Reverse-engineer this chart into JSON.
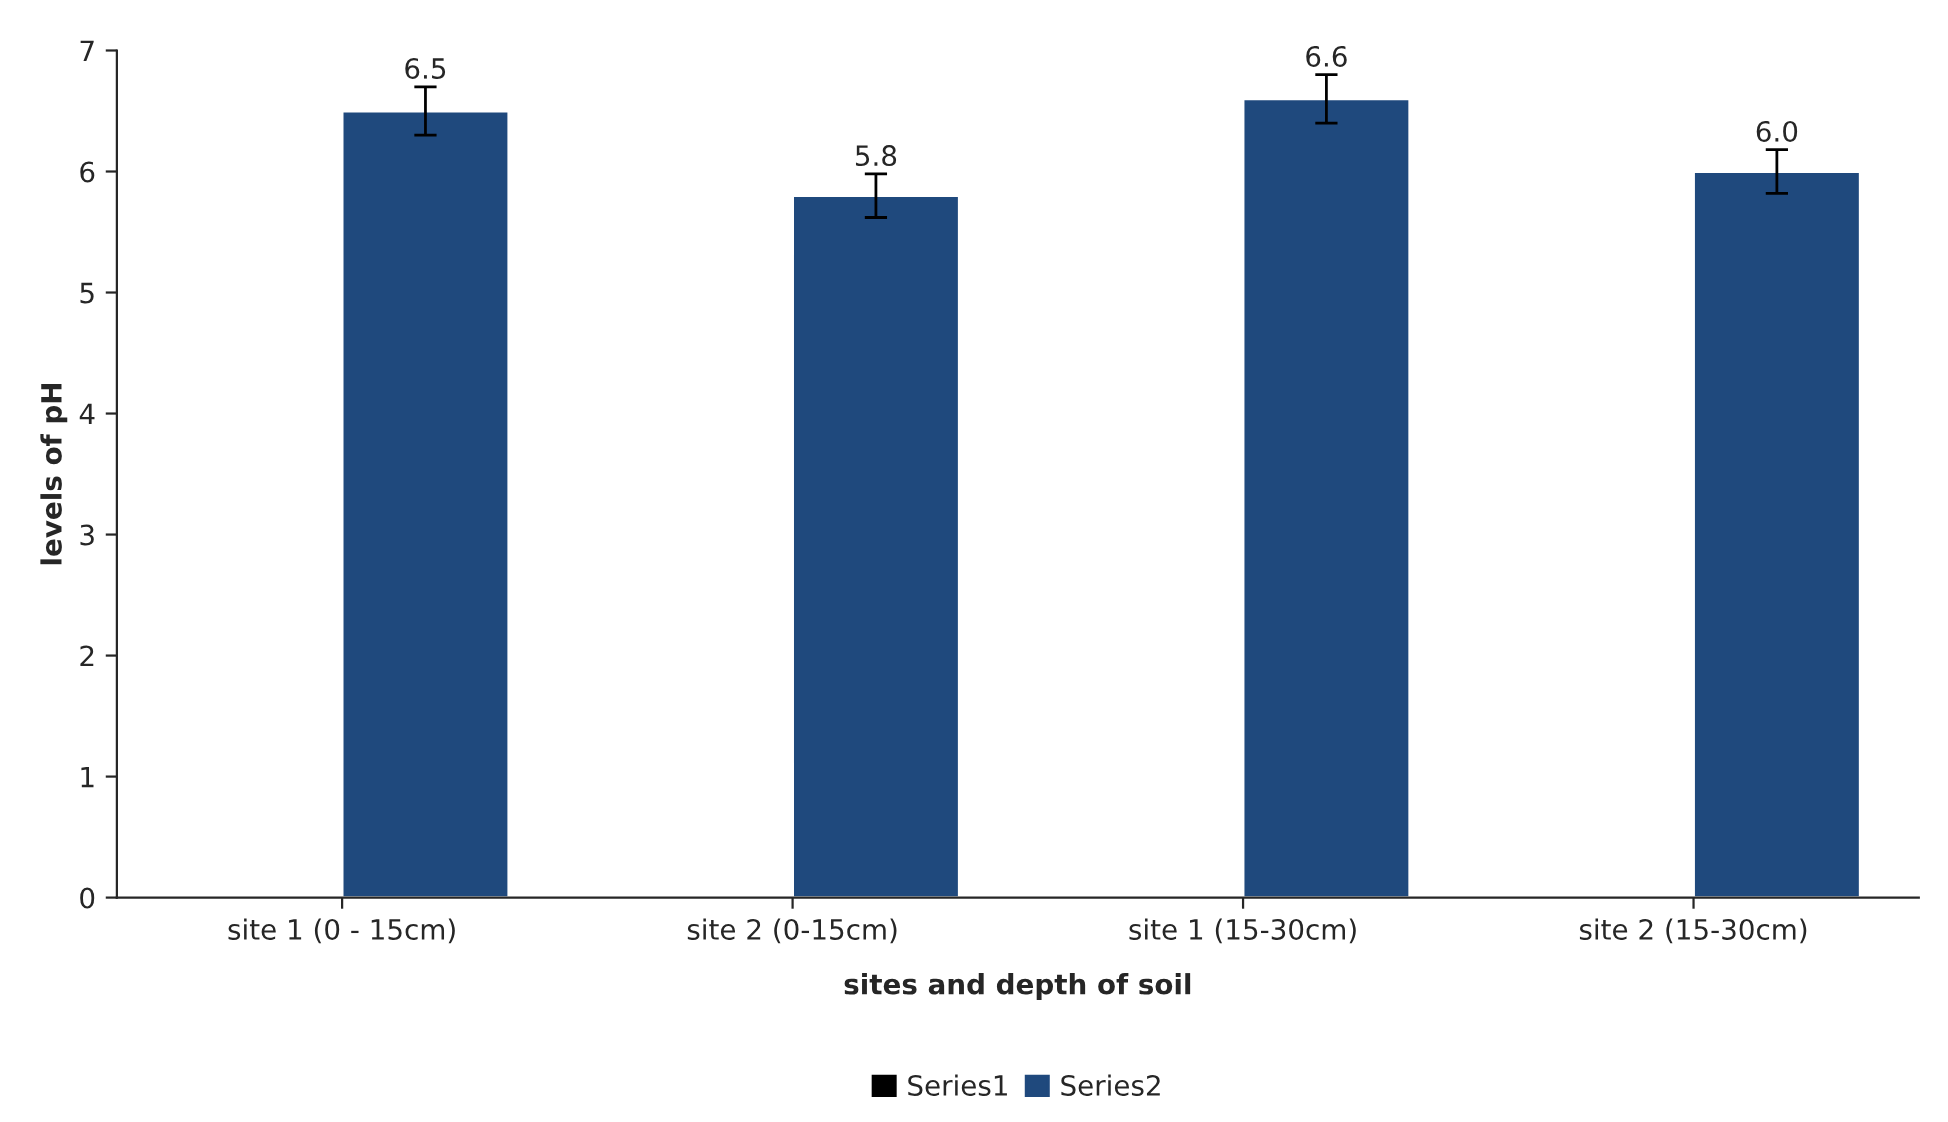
{
  "chart_data": {
    "type": "bar",
    "xlabel": "sites and depth of soil",
    "ylabel": "levels of pH",
    "categories": [
      "site 1 (0 - 15cm)",
      "site 2 (0-15cm)",
      "site 1 (15-30cm)",
      "site 2 (15-30cm)"
    ],
    "series": [
      {
        "name": "Series1",
        "color": "#000000",
        "values": [
          null,
          null,
          null,
          null
        ]
      },
      {
        "name": "Series2",
        "color": "#1f497d",
        "values": [
          6.5,
          5.8,
          6.6,
          6.0
        ],
        "value_labels": [
          "6.5",
          "5.8",
          "6.6",
          "6.0"
        ],
        "errors": [
          0.2,
          0.18,
          0.2,
          0.18
        ]
      }
    ],
    "ylim": [
      0,
      7
    ],
    "yticks": [
      0,
      1,
      2,
      3,
      4,
      5,
      6,
      7
    ],
    "grid": false,
    "legend": "bottom"
  }
}
